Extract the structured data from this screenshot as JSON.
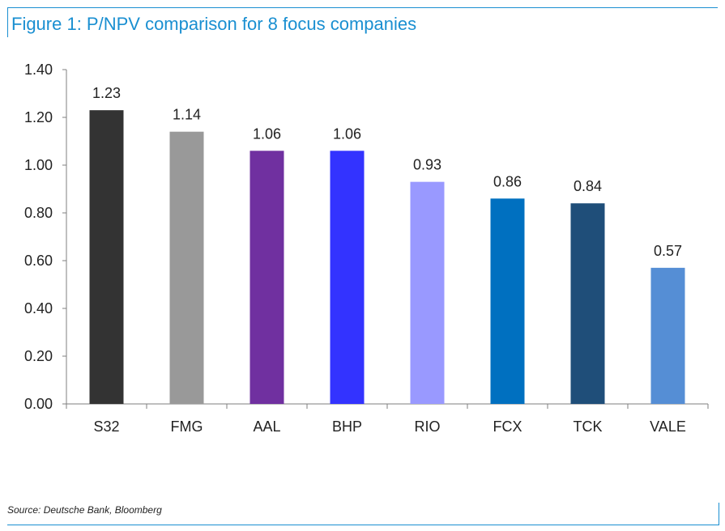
{
  "figure": {
    "title": "Figure 1: P/NPV comparison for 8 focus companies",
    "source": "Source: Deutsche Bank, Bloomberg"
  },
  "colors": {
    "accent": "#1a8fd1",
    "axis": "#7f7f7f"
  },
  "chart_data": {
    "type": "bar",
    "title": "Figure 1: P/NPV comparison for 8 focus companies",
    "xlabel": "",
    "ylabel": "",
    "ylim": [
      0,
      1.4
    ],
    "yticks": [
      0.0,
      0.2,
      0.4,
      0.6,
      0.8,
      1.0,
      1.2,
      1.4
    ],
    "ytick_labels": [
      "0.00",
      "0.20",
      "0.40",
      "0.60",
      "0.80",
      "1.00",
      "1.20",
      "1.40"
    ],
    "grid": false,
    "legend": "none",
    "categories": [
      "S32",
      "FMG",
      "AAL",
      "BHP",
      "RIO",
      "FCX",
      "TCK",
      "VALE"
    ],
    "values": [
      1.23,
      1.14,
      1.06,
      1.06,
      0.93,
      0.86,
      0.84,
      0.57
    ],
    "value_labels": [
      "1.23",
      "1.14",
      "1.06",
      "1.06",
      "0.93",
      "0.86",
      "0.84",
      "0.57"
    ],
    "bar_colors": [
      "#333333",
      "#999999",
      "#7030a0",
      "#3333ff",
      "#9999ff",
      "#0070c0",
      "#1f4e79",
      "#558ed5"
    ]
  }
}
